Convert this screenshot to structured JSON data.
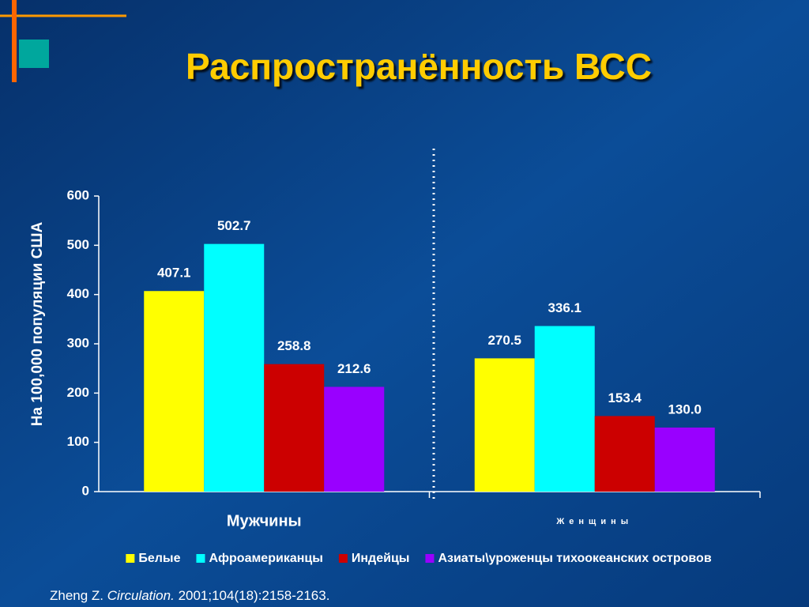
{
  "chart_data": {
    "type": "bar",
    "title": "Распространённость ВСС",
    "y_label": "На 100,000 популяции США",
    "categories": [
      "Мужчины",
      "Женщины"
    ],
    "series": [
      {
        "name": "Белые",
        "color": "#ffff00",
        "values": [
          407.1,
          270.5
        ],
        "value_labels": [
          "407.1",
          "270.5"
        ]
      },
      {
        "name": "Афроамериканцы",
        "color": "#00ffff",
        "values": [
          502.7,
          336.1
        ],
        "value_labels": [
          "502.7",
          "336.1"
        ]
      },
      {
        "name": "Индейцы",
        "color": "#cc0000",
        "values": [
          258.8,
          153.4
        ],
        "value_labels": [
          "258.8",
          "153.4"
        ]
      },
      {
        "name": "Азиаты\\уроженцы тихоокеанских островов",
        "color": "#9900ff",
        "values": [
          212.6,
          130.0
        ],
        "value_labels": [
          "212.6",
          "130.0"
        ]
      }
    ],
    "ylim": [
      0,
      600
    ],
    "yticks": [
      0,
      100,
      200,
      300,
      400,
      500,
      600
    ],
    "grid": false,
    "legend": "bottom",
    "source": {
      "author": "Zheng Z.",
      "journal": "Circulation.",
      "details": "2001;104(18):2158-2163."
    }
  }
}
